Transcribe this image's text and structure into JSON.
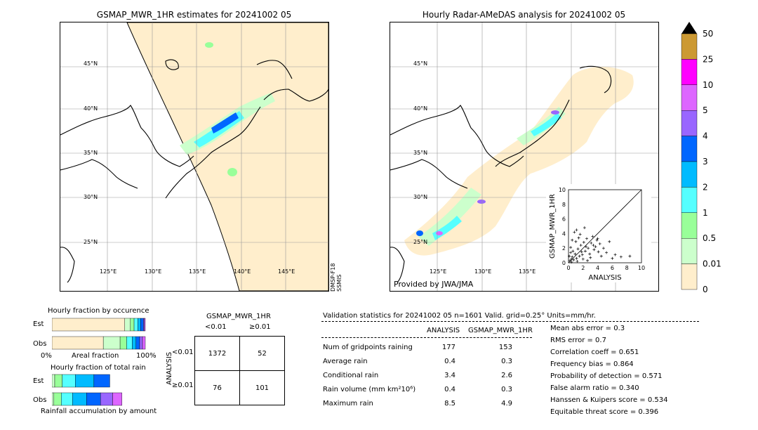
{
  "left_map": {
    "title": "GSMAP_MWR_1HR estimates for 20241002 05",
    "sensor_labels": [
      "DMSP-F18",
      "SSMIS"
    ],
    "lat_labels": [
      "45°N",
      "40°N",
      "35°N",
      "30°N",
      "25°N"
    ],
    "lon_labels": [
      "125°E",
      "130°E",
      "135°E",
      "140°E",
      "145°E"
    ]
  },
  "right_map": {
    "title": "Hourly Radar-AMeDAS analysis for 20241002 05",
    "credit": "Provided by JWA/JMA",
    "lat_labels": [
      "45°N",
      "40°N",
      "35°N",
      "30°N",
      "25°N"
    ],
    "lon_labels": [
      "125°E",
      "130°E",
      "135°E"
    ]
  },
  "colorbar": {
    "labels": [
      "50",
      "25",
      "10",
      "5",
      "4",
      "3",
      "2",
      "1",
      "0.5",
      "0.01",
      "0"
    ],
    "colors": [
      "#cc9933",
      "#ff00ff",
      "#dd66ff",
      "#9966ff",
      "#0066ff",
      "#00bbff",
      "#55ffff",
      "#99ff99",
      "#ccffcc",
      "#ffeecc"
    ],
    "extend_color": "#000000"
  },
  "fraction_occurrence": {
    "title": "Hourly fraction by occurence",
    "rows": [
      "Est",
      "Obs"
    ],
    "axis_left": "0%",
    "axis_mid": "Areal fraction",
    "axis_right": "100%"
  },
  "fraction_total": {
    "title": "Hourly fraction of total rain",
    "rows": [
      "Est",
      "Obs"
    ],
    "axis_caption": "Rainfall accumulation by amount"
  },
  "contingency": {
    "title": "GSMAP_MWR_1HR",
    "col_headers": [
      "<0.01",
      "≥0.01"
    ],
    "row_axis": "ANALYSIS",
    "row_headers": [
      "<0.01",
      "≥0.01"
    ],
    "cells": [
      [
        "1372",
        "52"
      ],
      [
        "76",
        "101"
      ]
    ]
  },
  "validation": {
    "header": "Validation statistics for 20241002 05  n=1601 Valid. grid=0.25° Units=mm/hr.",
    "col_analysis": "ANALYSIS",
    "col_gsmap": "GSMAP_MWR_1HR",
    "rows": [
      {
        "label": "Num of gridpoints raining",
        "analysis": "177",
        "gsmap": "153"
      },
      {
        "label": "Average rain",
        "analysis": "0.4",
        "gsmap": "0.3"
      },
      {
        "label": "Conditional rain",
        "analysis": "3.4",
        "gsmap": "2.6"
      },
      {
        "label": "Rain volume (mm km²10⁶)",
        "analysis": "0.4",
        "gsmap": "0.3"
      },
      {
        "label": "Maximum rain",
        "analysis": "8.5",
        "gsmap": "4.9"
      }
    ],
    "scores": [
      "Mean abs error =    0.3",
      "RMS error =    0.7",
      "Correlation coeff =  0.651",
      "Frequency bias =  0.864",
      "Probability of detection =  0.571",
      "False alarm ratio =  0.340",
      "Hanssen & Kuipers score =  0.534",
      "Equitable threat score =  0.396"
    ]
  },
  "chart_data": [
    {
      "type": "scatter",
      "xlabel": "ANALYSIS",
      "ylabel": "GSMAP_MWR_1HR",
      "xlim": [
        0,
        10
      ],
      "ylim": [
        0,
        10
      ],
      "ticks": [
        "0",
        "2",
        "4",
        "6",
        "8",
        "10"
      ],
      "points": [
        [
          0.2,
          0.3
        ],
        [
          0.4,
          0.1
        ],
        [
          0.5,
          0.8
        ],
        [
          0.7,
          0.4
        ],
        [
          0.9,
          1.2
        ],
        [
          1.1,
          0.6
        ],
        [
          1.3,
          1.9
        ],
        [
          1.5,
          0.9
        ],
        [
          1.7,
          2.4
        ],
        [
          1.9,
          1.1
        ],
        [
          2.1,
          2.8
        ],
        [
          2.3,
          1.6
        ],
        [
          2.5,
          3.3
        ],
        [
          2.7,
          2.0
        ],
        [
          2.9,
          1.2
        ],
        [
          3.1,
          2.7
        ],
        [
          3.3,
          3.6
        ],
        [
          3.5,
          1.8
        ],
        [
          3.7,
          2.2
        ],
        [
          3.9,
          3.1
        ],
        [
          4.1,
          1.5
        ],
        [
          4.3,
          2.6
        ],
        [
          4.5,
          0.9
        ],
        [
          4.8,
          2.0
        ],
        [
          5.2,
          1.4
        ],
        [
          5.6,
          2.9
        ],
        [
          6.0,
          0.6
        ],
        [
          6.4,
          1.1
        ],
        [
          0.3,
          2.1
        ],
        [
          0.6,
          1.6
        ],
        [
          1.0,
          2.9
        ],
        [
          1.4,
          3.4
        ],
        [
          0.8,
          4.2
        ],
        [
          1.6,
          3.9
        ],
        [
          2.2,
          4.8
        ],
        [
          0.5,
          3.1
        ],
        [
          1.2,
          0.2
        ],
        [
          2.0,
          0.5
        ],
        [
          2.6,
          0.3
        ],
        [
          3.0,
          0.7
        ],
        [
          7.2,
          0.8
        ],
        [
          8.4,
          0.9
        ],
        [
          0.1,
          0.9
        ],
        [
          0.3,
          1.4
        ],
        [
          1.8,
          1.5
        ],
        [
          2.4,
          2.2
        ],
        [
          3.4,
          2.4
        ],
        [
          4.0,
          3.3
        ],
        [
          1.1,
          4.5
        ],
        [
          0.4,
          0.5
        ]
      ]
    },
    {
      "type": "bar",
      "title": "Hourly fraction by occurence",
      "categories": [
        "Est",
        "Obs"
      ],
      "series": [
        {
          "color": "#ffeecc",
          "values": [
            0.78,
            0.55
          ]
        },
        {
          "color": "#ccffcc",
          "values": [
            0.06,
            0.18
          ]
        },
        {
          "color": "#99ff99",
          "values": [
            0.04,
            0.07
          ]
        },
        {
          "color": "#55ffff",
          "values": [
            0.04,
            0.06
          ]
        },
        {
          "color": "#00bbff",
          "values": [
            0.03,
            0.04
          ]
        },
        {
          "color": "#0066ff",
          "values": [
            0.03,
            0.04
          ]
        },
        {
          "color": "#9966ff",
          "values": [
            0.01,
            0.03
          ]
        },
        {
          "color": "#dd66ff",
          "values": [
            0.01,
            0.03
          ]
        }
      ]
    },
    {
      "type": "bar",
      "title": "Hourly fraction of total rain",
      "categories": [
        "Est",
        "Obs"
      ],
      "series": [
        {
          "color": "#ccffcc",
          "values": [
            0.03,
            0.02
          ]
        },
        {
          "color": "#99ff99",
          "values": [
            0.08,
            0.08
          ]
        },
        {
          "color": "#55ffff",
          "values": [
            0.14,
            0.12
          ]
        },
        {
          "color": "#00bbff",
          "values": [
            0.2,
            0.15
          ]
        },
        {
          "color": "#0066ff",
          "values": [
            0.17,
            0.15
          ]
        },
        {
          "color": "#9966ff",
          "values": [
            0.0,
            0.13
          ]
        },
        {
          "color": "#dd66ff",
          "values": [
            0.0,
            0.1
          ]
        }
      ]
    }
  ]
}
